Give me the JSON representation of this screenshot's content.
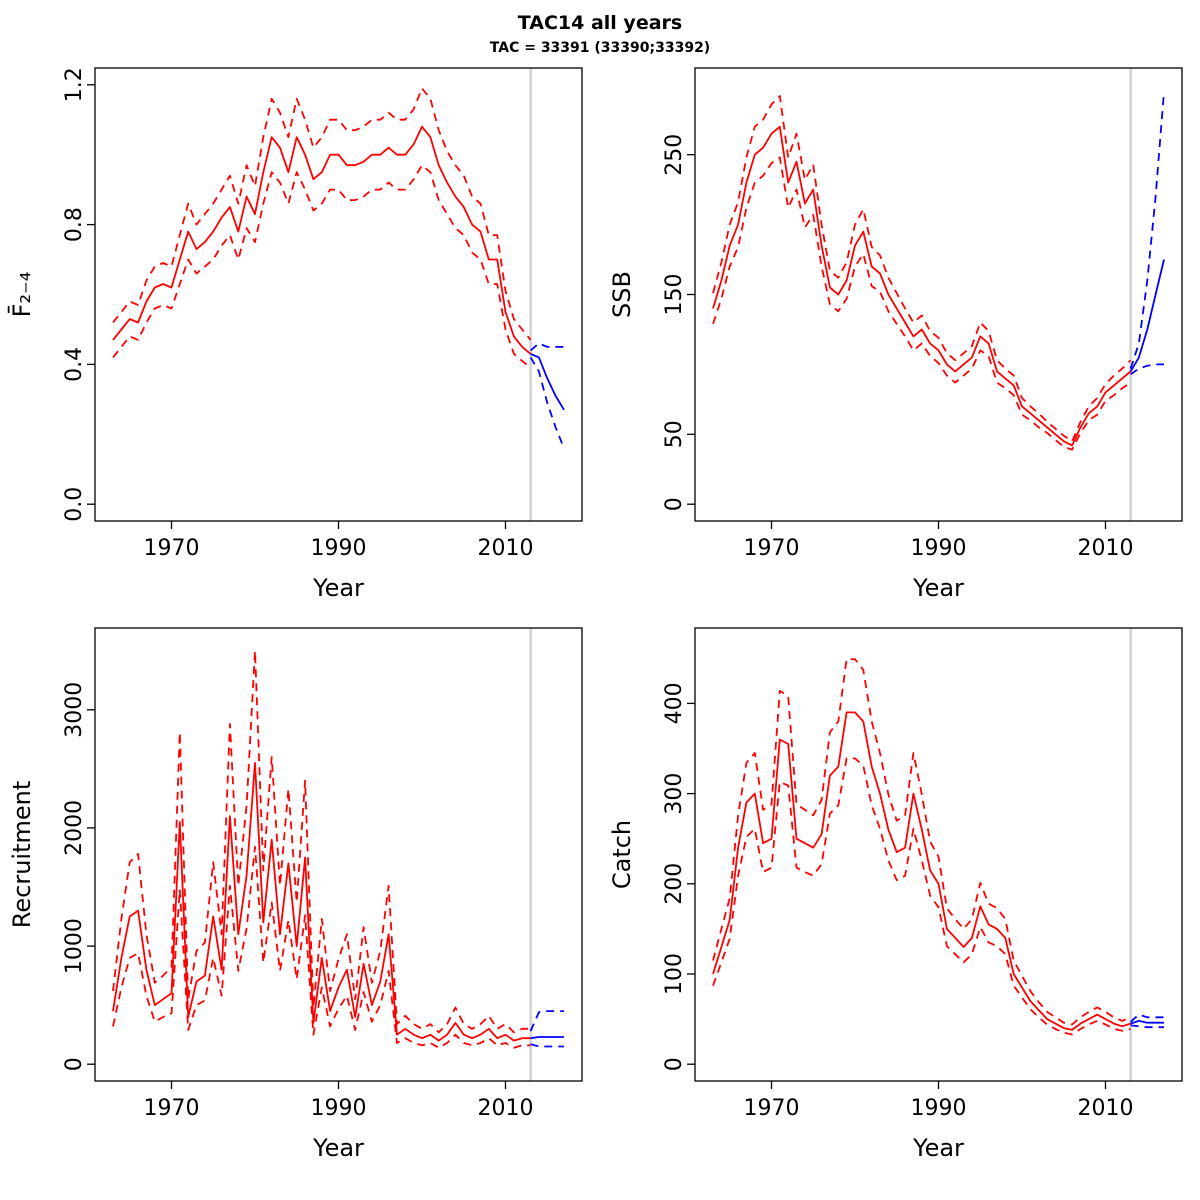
{
  "title": "TAC14 all years",
  "subtitle": "TAC = 33391 (33390;33392)",
  "colors": {
    "estimate": "#ff0000",
    "forecast": "#0000ff",
    "divider": "#d2d2d2",
    "frame": "#000000"
  },
  "years": [
    1963,
    1964,
    1965,
    1966,
    1967,
    1968,
    1969,
    1970,
    1971,
    1972,
    1973,
    1974,
    1975,
    1976,
    1977,
    1978,
    1979,
    1980,
    1981,
    1982,
    1983,
    1984,
    1985,
    1986,
    1987,
    1988,
    1989,
    1990,
    1991,
    1992,
    1993,
    1994,
    1995,
    1996,
    1997,
    1998,
    1999,
    2000,
    2001,
    2002,
    2003,
    2004,
    2005,
    2006,
    2007,
    2008,
    2009,
    2010,
    2011,
    2012,
    2013
  ],
  "forecast_years": [
    2013,
    2014,
    2015,
    2016,
    2017
  ],
  "chart_data": [
    {
      "type": "line",
      "id": "f-panel",
      "ylabel": "F̄₂₋₄",
      "xlabel": "Year",
      "xlim": [
        1963,
        2017
      ],
      "ylim": [
        0,
        1.2
      ],
      "xticks": [
        1970,
        1990,
        2010
      ],
      "xtick_labels": [
        "1970",
        "1990",
        "2010"
      ],
      "yticks": [
        0,
        0.4,
        0.8,
        1.2
      ],
      "ytick_labels": [
        "0.0",
        "0.4",
        "0.8",
        "1.2"
      ],
      "divider_x": 2013,
      "legend": "none",
      "series": [
        {
          "name": "estimate-median",
          "x_key": "years",
          "color_key": "estimate",
          "dashed": false,
          "y": [
            0.47,
            0.5,
            0.53,
            0.52,
            0.58,
            0.62,
            0.63,
            0.62,
            0.7,
            0.78,
            0.73,
            0.75,
            0.78,
            0.82,
            0.85,
            0.78,
            0.88,
            0.83,
            0.95,
            1.05,
            1.02,
            0.95,
            1.05,
            1.0,
            0.93,
            0.95,
            1.0,
            1.0,
            0.97,
            0.97,
            0.98,
            1.0,
            1.0,
            1.02,
            1.0,
            1.0,
            1.03,
            1.08,
            1.05,
            0.97,
            0.92,
            0.88,
            0.85,
            0.8,
            0.78,
            0.7,
            0.7,
            0.55,
            0.48,
            0.45,
            0.43
          ]
        },
        {
          "name": "estimate-upper-ci",
          "x_key": "years",
          "color_key": "estimate",
          "dashed": true,
          "y": [
            0.52,
            0.55,
            0.58,
            0.57,
            0.64,
            0.68,
            0.69,
            0.68,
            0.77,
            0.86,
            0.8,
            0.83,
            0.86,
            0.9,
            0.94,
            0.86,
            0.97,
            0.91,
            1.05,
            1.16,
            1.12,
            1.05,
            1.16,
            1.1,
            1.02,
            1.05,
            1.1,
            1.1,
            1.07,
            1.07,
            1.08,
            1.1,
            1.1,
            1.12,
            1.1,
            1.1,
            1.13,
            1.19,
            1.16,
            1.07,
            1.01,
            0.97,
            0.94,
            0.88,
            0.86,
            0.77,
            0.77,
            0.61,
            0.53,
            0.5,
            0.47
          ]
        },
        {
          "name": "estimate-lower-ci",
          "x_key": "years",
          "color_key": "estimate",
          "dashed": true,
          "y": [
            0.42,
            0.45,
            0.48,
            0.47,
            0.52,
            0.56,
            0.57,
            0.56,
            0.63,
            0.7,
            0.66,
            0.68,
            0.7,
            0.74,
            0.77,
            0.7,
            0.79,
            0.75,
            0.86,
            0.95,
            0.92,
            0.86,
            0.95,
            0.9,
            0.84,
            0.86,
            0.9,
            0.9,
            0.87,
            0.87,
            0.88,
            0.9,
            0.9,
            0.92,
            0.9,
            0.9,
            0.93,
            0.97,
            0.95,
            0.87,
            0.83,
            0.79,
            0.77,
            0.72,
            0.7,
            0.63,
            0.63,
            0.5,
            0.43,
            0.41,
            0.39
          ]
        },
        {
          "name": "forecast-median",
          "x_key": "forecast_years",
          "color_key": "forecast",
          "dashed": false,
          "y": [
            0.43,
            0.42,
            0.36,
            0.31,
            0.27
          ]
        },
        {
          "name": "forecast-upper-ci",
          "x_key": "forecast_years",
          "color_key": "forecast",
          "dashed": true,
          "y": [
            0.44,
            0.46,
            0.45,
            0.45,
            0.45
          ]
        },
        {
          "name": "forecast-lower-ci",
          "x_key": "forecast_years",
          "color_key": "forecast",
          "dashed": true,
          "y": [
            0.42,
            0.38,
            0.29,
            0.22,
            0.16
          ]
        }
      ]
    },
    {
      "type": "line",
      "id": "ssb-panel",
      "ylabel": "SSB",
      "xlabel": "Year",
      "xlim": [
        1963,
        2017
      ],
      "ylim": [
        0,
        300
      ],
      "xticks": [
        1970,
        1990,
        2010
      ],
      "xtick_labels": [
        "1970",
        "1990",
        "2010"
      ],
      "yticks": [
        0,
        50,
        150,
        250
      ],
      "ytick_labels": [
        "0",
        "50",
        "150",
        "250"
      ],
      "divider_x": 2013,
      "legend": "none",
      "series": [
        {
          "name": "estimate-median",
          "x_key": "years",
          "color_key": "estimate",
          "dashed": false,
          "y": [
            140,
            160,
            185,
            200,
            230,
            250,
            255,
            265,
            270,
            230,
            245,
            215,
            225,
            185,
            155,
            150,
            160,
            185,
            195,
            170,
            165,
            150,
            140,
            130,
            120,
            125,
            115,
            110,
            100,
            95,
            100,
            105,
            120,
            115,
            95,
            90,
            85,
            70,
            65,
            60,
            55,
            50,
            45,
            42,
            55,
            65,
            70,
            80,
            85,
            90,
            95
          ]
        },
        {
          "name": "estimate-upper-ci",
          "x_key": "years",
          "color_key": "estimate",
          "dashed": true,
          "y": [
            151,
            173,
            200,
            216,
            248,
            270,
            275,
            286,
            292,
            248,
            265,
            232,
            243,
            200,
            167,
            162,
            173,
            200,
            211,
            184,
            178,
            162,
            151,
            140,
            130,
            135,
            124,
            119,
            108,
            103,
            108,
            113,
            130,
            124,
            103,
            97,
            92,
            76,
            70,
            65,
            59,
            54,
            49,
            45,
            59,
            70,
            76,
            86,
            92,
            97,
            103
          ]
        },
        {
          "name": "estimate-lower-ci",
          "x_key": "years",
          "color_key": "estimate",
          "dashed": true,
          "y": [
            129,
            147,
            170,
            184,
            212,
            230,
            235,
            244,
            248,
            212,
            225,
            198,
            207,
            170,
            143,
            138,
            147,
            170,
            179,
            156,
            152,
            138,
            129,
            120,
            110,
            115,
            106,
            101,
            92,
            87,
            92,
            97,
            110,
            106,
            87,
            83,
            78,
            64,
            60,
            55,
            51,
            46,
            41,
            39,
            51,
            60,
            64,
            74,
            78,
            83,
            87
          ]
        },
        {
          "name": "forecast-median",
          "x_key": "forecast_years",
          "color_key": "forecast",
          "dashed": false,
          "y": [
            95,
            105,
            125,
            150,
            175
          ]
        },
        {
          "name": "forecast-upper-ci",
          "x_key": "forecast_years",
          "color_key": "forecast",
          "dashed": true,
          "y": [
            97,
            115,
            160,
            220,
            295
          ]
        },
        {
          "name": "forecast-lower-ci",
          "x_key": "forecast_years",
          "color_key": "forecast",
          "dashed": true,
          "y": [
            93,
            97,
            99,
            100,
            100
          ]
        }
      ]
    },
    {
      "type": "line",
      "id": "recruitment-panel",
      "ylabel": "Recruitment",
      "xlabel": "Year",
      "xlim": [
        1963,
        2017
      ],
      "ylim": [
        0,
        3550
      ],
      "xticks": [
        1970,
        1990,
        2010
      ],
      "xtick_labels": [
        "1970",
        "1990",
        "2010"
      ],
      "yticks": [
        0,
        1000,
        2000,
        3000
      ],
      "ytick_labels": [
        "0",
        "1000",
        "2000",
        "3000"
      ],
      "divider_x": 2013,
      "legend": "none",
      "series": [
        {
          "name": "estimate-median",
          "x_key": "years",
          "color_key": "estimate",
          "dashed": false,
          "y": [
            450,
            900,
            1250,
            1300,
            800,
            500,
            550,
            600,
            2050,
            400,
            700,
            750,
            1250,
            800,
            2100,
            1100,
            1600,
            2550,
            1200,
            1900,
            1100,
            1700,
            1000,
            1750,
            350,
            900,
            450,
            650,
            800,
            400,
            850,
            500,
            700,
            1100,
            250,
            300,
            250,
            220,
            250,
            200,
            250,
            350,
            250,
            220,
            250,
            300,
            220,
            250,
            200,
            220,
            220
          ]
        },
        {
          "name": "estimate-upper-ci",
          "x_key": "years",
          "color_key": "estimate",
          "dashed": true,
          "y": [
            620,
            1230,
            1710,
            1780,
            1100,
            690,
            750,
            820,
            2810,
            550,
            960,
            1030,
            1710,
            1100,
            2880,
            1510,
            2190,
            3500,
            1640,
            2600,
            1510,
            2330,
            1370,
            2400,
            480,
            1230,
            620,
            890,
            1100,
            550,
            1160,
            690,
            960,
            1510,
            340,
            410,
            340,
            300,
            340,
            270,
            340,
            480,
            340,
            300,
            340,
            410,
            300,
            340,
            270,
            300,
            300
          ]
        },
        {
          "name": "estimate-lower-ci",
          "x_key": "years",
          "color_key": "estimate",
          "dashed": true,
          "y": [
            320,
            650,
            900,
            940,
            580,
            360,
            400,
            430,
            1480,
            290,
            500,
            540,
            900,
            580,
            1510,
            790,
            1150,
            1840,
            860,
            1370,
            790,
            1220,
            720,
            1260,
            250,
            650,
            320,
            470,
            580,
            290,
            610,
            360,
            500,
            790,
            180,
            220,
            180,
            160,
            180,
            140,
            180,
            250,
            180,
            160,
            180,
            220,
            160,
            180,
            140,
            160,
            160
          ]
        },
        {
          "name": "forecast-median",
          "x_key": "forecast_years",
          "color_key": "forecast",
          "dashed": false,
          "y": [
            220,
            230,
            230,
            230,
            230
          ]
        },
        {
          "name": "forecast-upper-ci",
          "x_key": "forecast_years",
          "color_key": "forecast",
          "dashed": true,
          "y": [
            280,
            440,
            450,
            450,
            450
          ]
        },
        {
          "name": "forecast-lower-ci",
          "x_key": "forecast_years",
          "color_key": "forecast",
          "dashed": true,
          "y": [
            170,
            150,
            150,
            150,
            150
          ]
        }
      ]
    },
    {
      "type": "line",
      "id": "catch-panel",
      "ylabel": "Catch",
      "xlabel": "Year",
      "xlim": [
        1963,
        2017
      ],
      "ylim": [
        0,
        465
      ],
      "xticks": [
        1970,
        1990,
        2010
      ],
      "xtick_labels": [
        "1970",
        "1990",
        "2010"
      ],
      "yticks": [
        0,
        100,
        200,
        300,
        400
      ],
      "ytick_labels": [
        "0",
        "100",
        "200",
        "300",
        "400"
      ],
      "divider_x": 2013,
      "legend": "none",
      "series": [
        {
          "name": "estimate-median",
          "x_key": "years",
          "color_key": "estimate",
          "dashed": false,
          "y": [
            100,
            130,
            160,
            240,
            290,
            300,
            245,
            250,
            360,
            355,
            250,
            245,
            240,
            255,
            320,
            330,
            390,
            390,
            380,
            330,
            300,
            260,
            235,
            240,
            300,
            260,
            215,
            200,
            150,
            140,
            130,
            140,
            175,
            155,
            150,
            140,
            100,
            85,
            70,
            60,
            50,
            45,
            40,
            38,
            45,
            50,
            55,
            50,
            45,
            42,
            45
          ]
        },
        {
          "name": "estimate-upper-ci",
          "x_key": "years",
          "color_key": "estimate",
          "dashed": true,
          "y": [
            115,
            150,
            184,
            276,
            334,
            345,
            282,
            288,
            414,
            408,
            288,
            282,
            276,
            293,
            368,
            380,
            449,
            449,
            437,
            380,
            345,
            299,
            270,
            276,
            345,
            299,
            247,
            230,
            173,
            161,
            150,
            161,
            201,
            178,
            173,
            161,
            115,
            98,
            81,
            69,
            58,
            52,
            46,
            44,
            52,
            58,
            63,
            58,
            52,
            48,
            52
          ]
        },
        {
          "name": "estimate-lower-ci",
          "x_key": "years",
          "color_key": "estimate",
          "dashed": true,
          "y": [
            87,
            113,
            139,
            209,
            252,
            261,
            213,
            218,
            313,
            309,
            218,
            213,
            209,
            222,
            278,
            287,
            339,
            339,
            331,
            287,
            261,
            226,
            204,
            209,
            261,
            226,
            187,
            174,
            131,
            122,
            113,
            122,
            152,
            135,
            131,
            122,
            87,
            74,
            61,
            52,
            44,
            39,
            35,
            33,
            39,
            44,
            48,
            44,
            39,
            37,
            39
          ]
        },
        {
          "name": "forecast-median",
          "x_key": "forecast_years",
          "color_key": "forecast",
          "dashed": false,
          "y": [
            45,
            48,
            46,
            46,
            46
          ]
        },
        {
          "name": "forecast-upper-ci",
          "x_key": "forecast_years",
          "color_key": "forecast",
          "dashed": true,
          "y": [
            47,
            55,
            52,
            52,
            52
          ]
        },
        {
          "name": "forecast-lower-ci",
          "x_key": "forecast_years",
          "color_key": "forecast",
          "dashed": true,
          "y": [
            43,
            42,
            41,
            41,
            41
          ]
        }
      ]
    }
  ]
}
